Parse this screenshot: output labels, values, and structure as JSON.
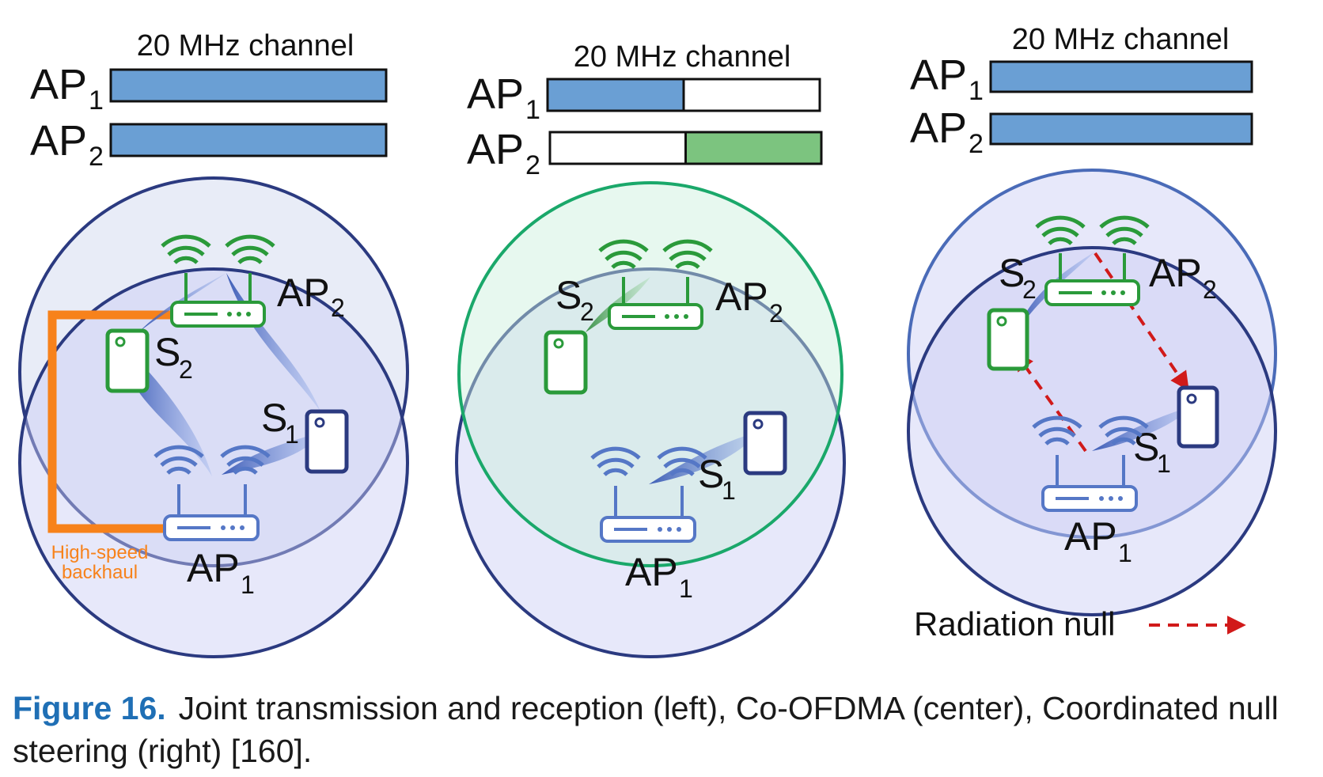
{
  "panels": [
    {
      "channel_label": "20 MHz channel",
      "ap1": "AP",
      "ap1_sub": "1",
      "ap2": "AP",
      "ap2_sub": "2",
      "s1": "S",
      "s1_sub": "1",
      "s2": "S",
      "s2_sub": "2",
      "ap1_fill": 1.0,
      "ap2_fill": 1.0,
      "backhaul_label": [
        "High-speed",
        "backhaul"
      ]
    },
    {
      "channel_label": "20 MHz channel",
      "ap1": "AP",
      "ap1_sub": "1",
      "ap2": "AP",
      "ap2_sub": "2",
      "s1": "S",
      "s1_sub": "1",
      "s2": "S",
      "s2_sub": "2",
      "ap1_fill": 0.5,
      "ap2_fill": 0.5
    },
    {
      "channel_label": "20 MHz channel",
      "ap1": "AP",
      "ap1_sub": "1",
      "ap2": "AP",
      "ap2_sub": "2",
      "s1": "S",
      "s1_sub": "1",
      "s2": "S",
      "s2_sub": "2",
      "ap1_fill": 1.0,
      "ap2_fill": 1.0,
      "legend": "Radiation null"
    }
  ],
  "colors": {
    "blue_bar": "#6a9fd4",
    "green_bar": "#7cc47f",
    "dark_navy": "#2b3a80",
    "green_device": "#2a9a3a",
    "teal_circle": "#1aa86a",
    "backhaul": "#f7821b",
    "null_red": "#d11a1a",
    "caption_blue": "#1f6fb5"
  },
  "caption": {
    "label": "Figure 16.",
    "text": "Joint transmission and reception (left), Co-OFDMA (center), Coordinated null steering (right) [160]."
  }
}
